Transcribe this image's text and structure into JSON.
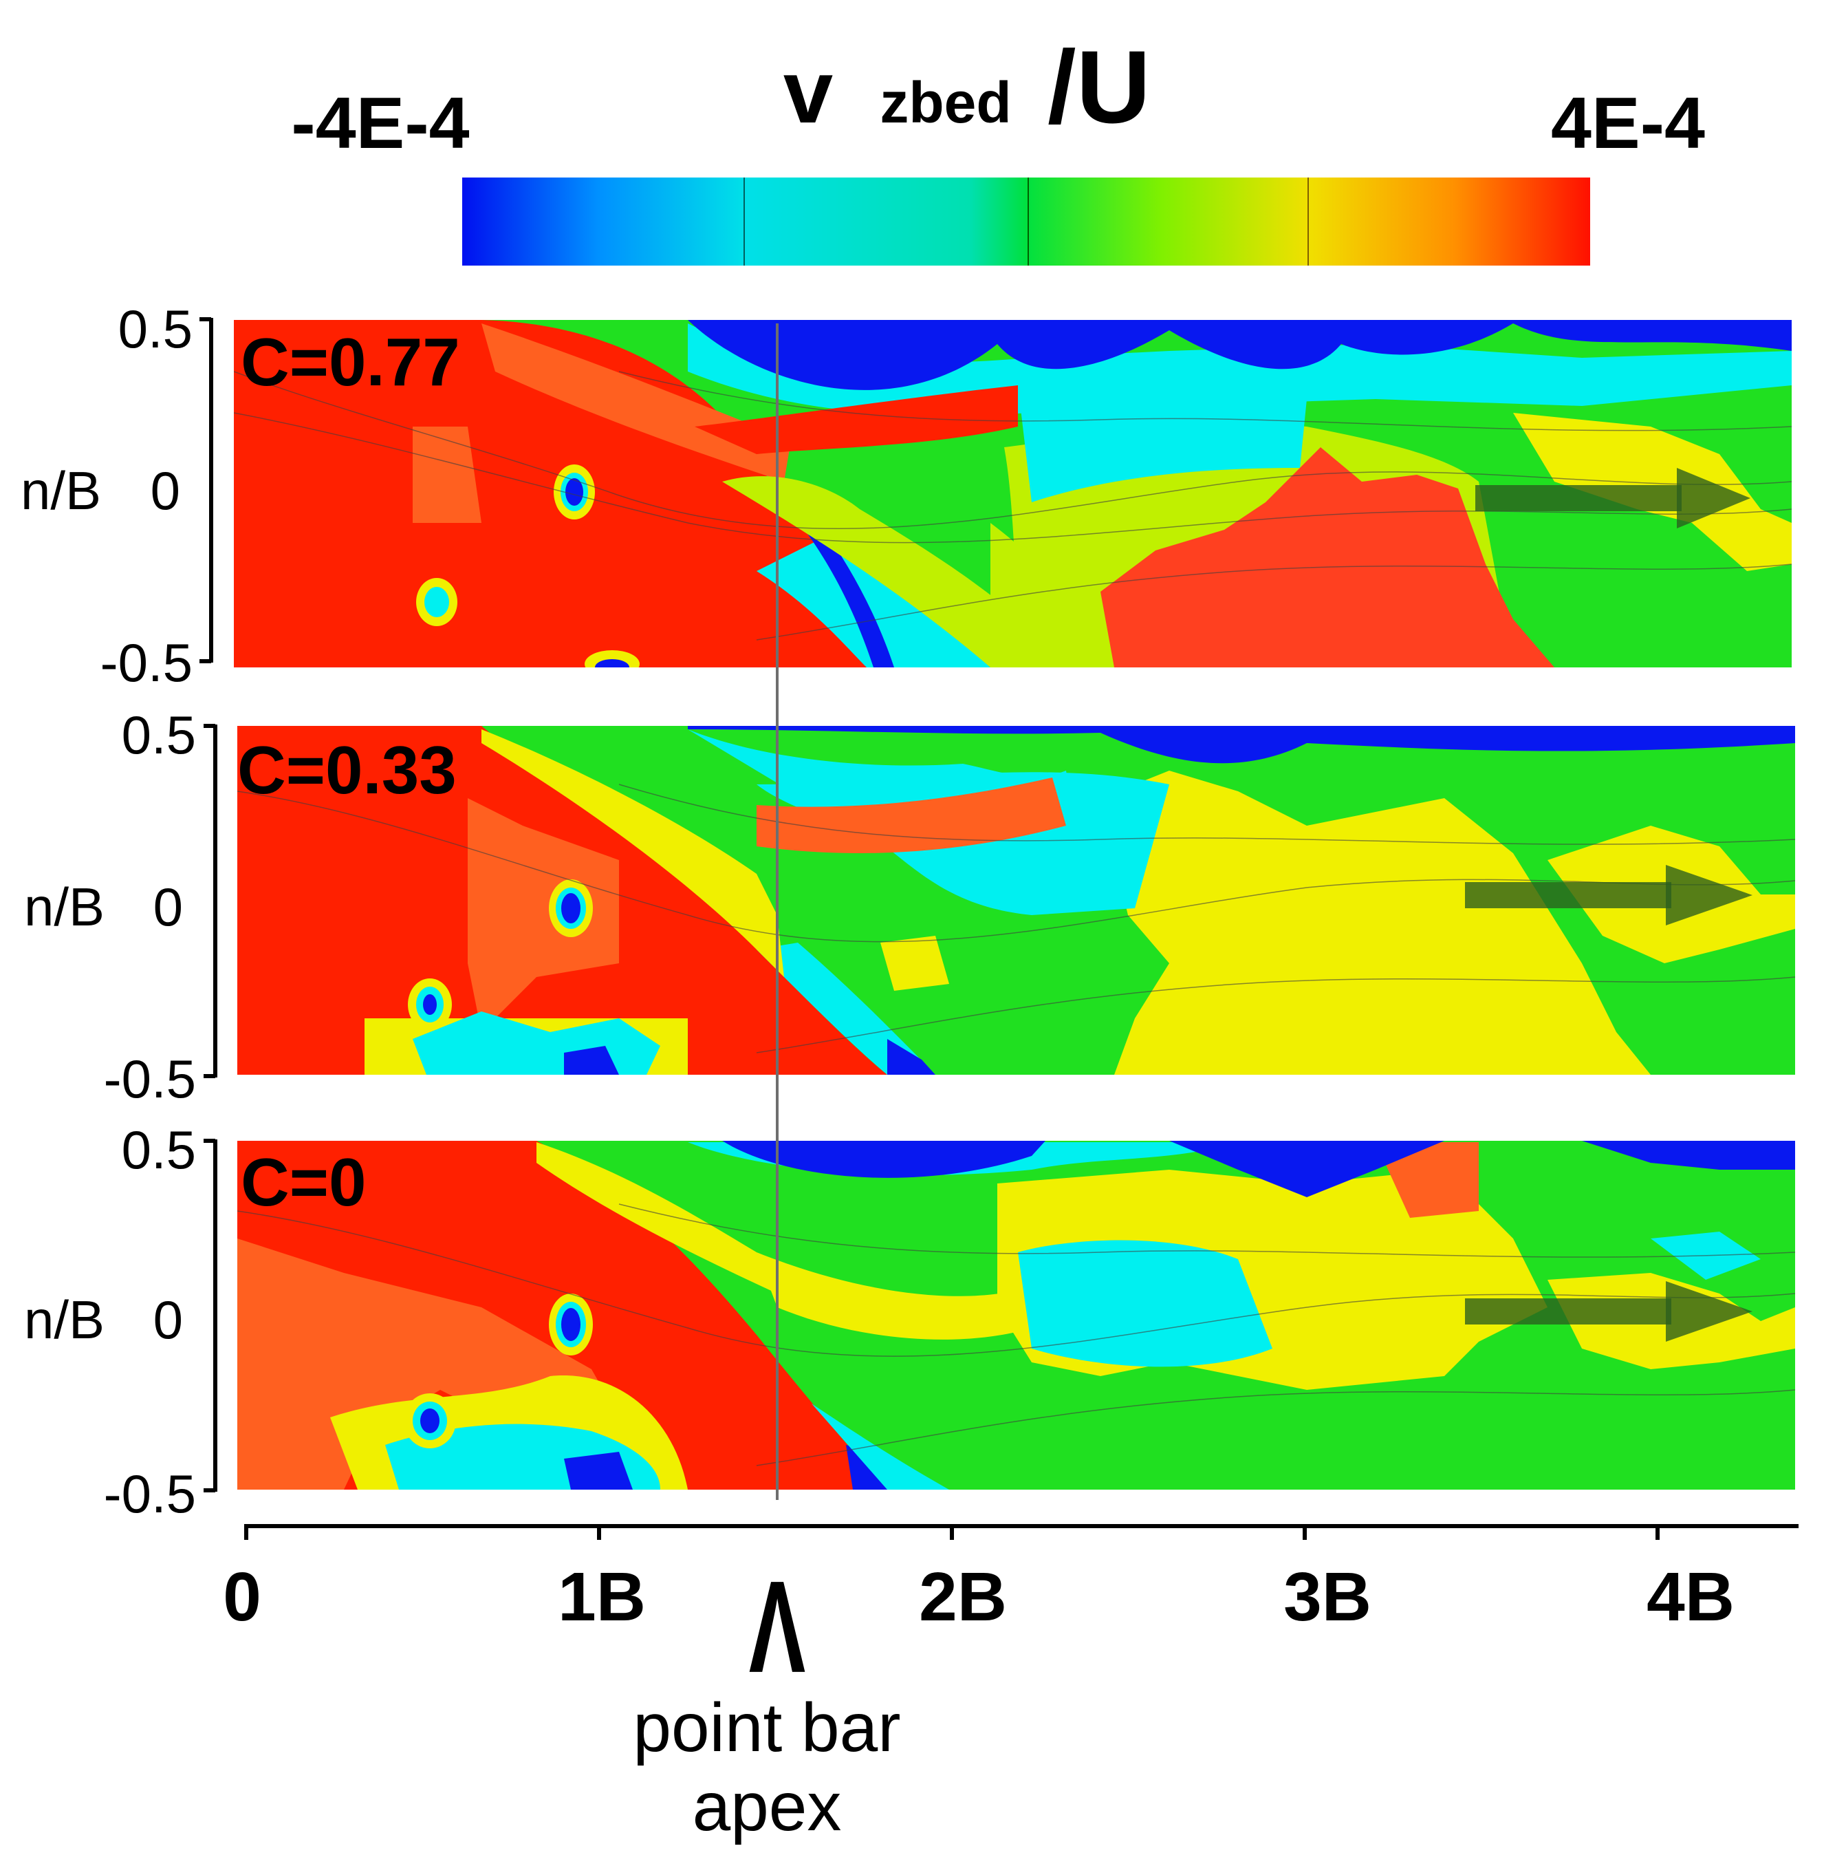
{
  "chart_data": {
    "type": "heatmap",
    "colorbar": {
      "title_main": "v",
      "title_sub": "zbed",
      "title_div": "/U",
      "min_label": "-4E-4",
      "max_label": "4E-4",
      "range": [
        -0.0004,
        0.0004
      ],
      "colors": [
        "#0018ff",
        "#0096ff",
        "#00d8f0",
        "#00e0c0",
        "#00e060",
        "#40e000",
        "#b0f000",
        "#f0f000",
        "#ffb000",
        "#ff6000",
        "#ff1000"
      ]
    },
    "y_axis": {
      "label": "n/B",
      "ticks": [
        "0.5",
        "0",
        "-0.5"
      ],
      "range": [
        -0.5,
        0.5
      ]
    },
    "x_axis": {
      "ticks": [
        "0",
        "1B",
        "2B",
        "3B",
        "4B"
      ],
      "values": [
        0,
        1,
        2,
        3,
        4
      ],
      "range": [
        0,
        4.4
      ]
    },
    "marker": {
      "x": 1.47,
      "caret": "Λ",
      "label_line1": "point bar",
      "label_line2": "apex"
    },
    "panels": [
      {
        "label": "C=0.77",
        "C": 0.77
      },
      {
        "label": "C=0.33",
        "C": 0.33
      },
      {
        "label": "C=0",
        "C": 0
      }
    ],
    "flow_arrows": "right",
    "colors": {
      "red": "#ff2000",
      "orange": "#ff6020",
      "yellow": "#f0f000",
      "lime": "#c0f000",
      "green": "#20e020",
      "cyan": "#00f0f0",
      "blue": "#0818f0"
    }
  }
}
